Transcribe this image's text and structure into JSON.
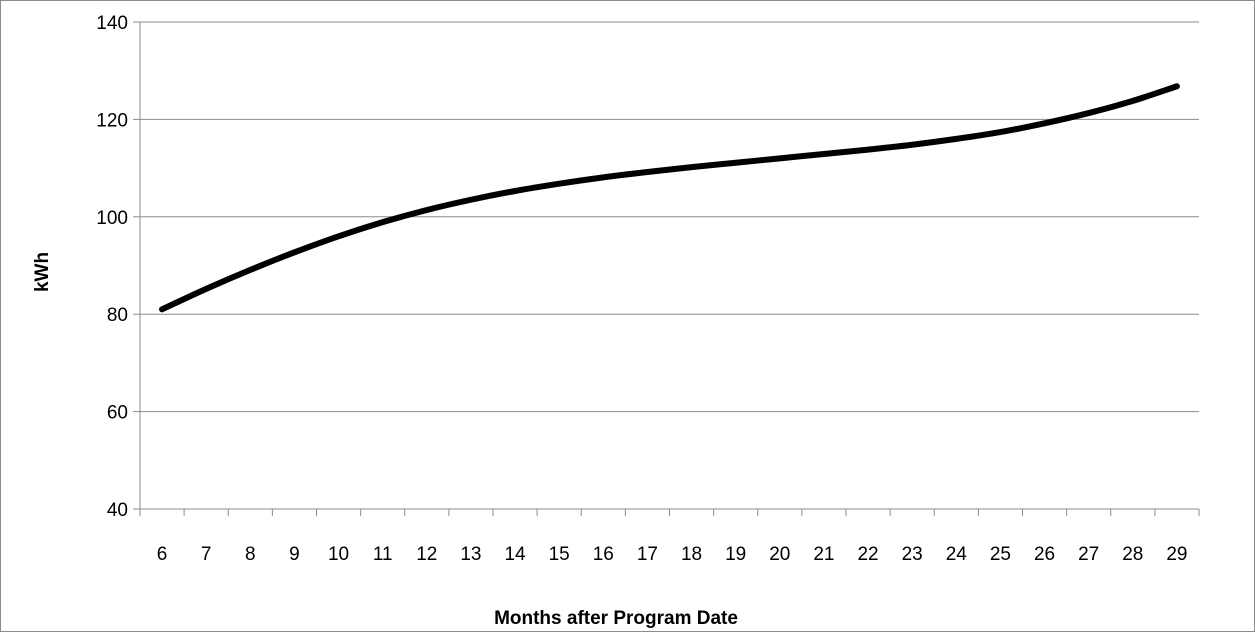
{
  "chart_data": {
    "type": "line",
    "title": "",
    "xlabel": "Months after Program Date",
    "ylabel": "kWh",
    "ylim": [
      40,
      140
    ],
    "yticks": [
      40,
      60,
      80,
      100,
      120,
      140
    ],
    "grid": true,
    "legend": "none",
    "categories": [
      "6",
      "7",
      "8",
      "9",
      "10",
      "11",
      "12",
      "13",
      "14",
      "15",
      "16",
      "17",
      "18",
      "19",
      "20",
      "21",
      "22",
      "23",
      "24",
      "25",
      "26",
      "27",
      "28",
      "29"
    ],
    "series": [
      {
        "color": "#000000",
        "values": [
          81,
          85.2,
          89.1,
          92.7,
          96,
          98.9,
          101.4,
          103.5,
          105.3,
          106.8,
          108.1,
          109.2,
          110.2,
          111.1,
          112,
          112.9,
          113.8,
          114.8,
          116,
          117.4,
          119.2,
          121.3,
          123.8,
          126.8
        ]
      }
    ]
  }
}
